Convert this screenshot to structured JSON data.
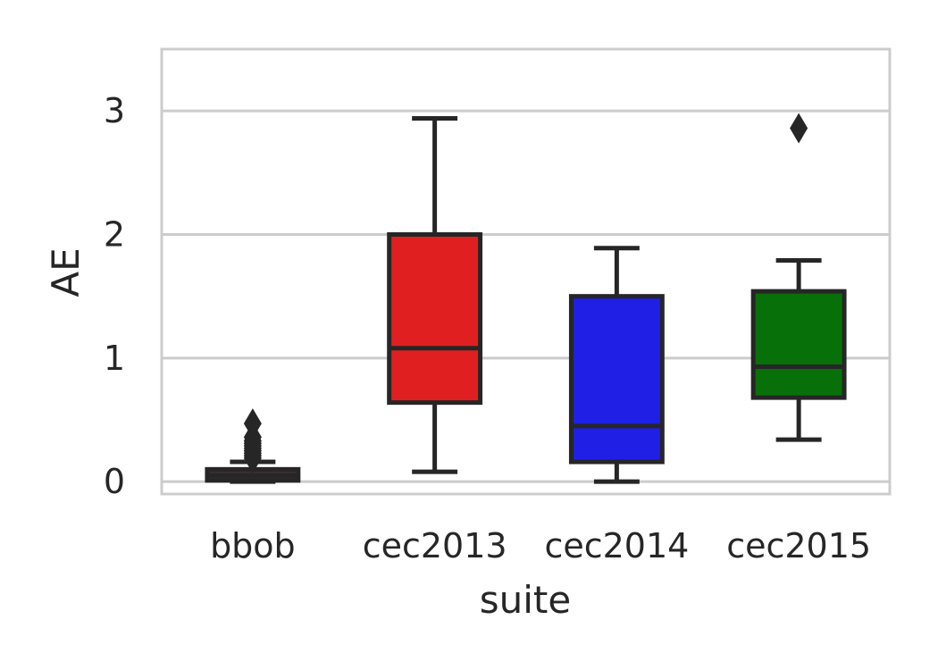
{
  "chart_data": {
    "type": "box",
    "xlabel": "suite",
    "ylabel": "AE",
    "ylim": [
      -0.1,
      3.5
    ],
    "yticks": [
      0,
      1,
      2,
      3
    ],
    "grid": "horizontal",
    "categories": [
      "bbob",
      "cec2013",
      "cec2014",
      "cec2015"
    ],
    "colors": [
      "#3a2f36",
      "#e02020",
      "#1f1fe6",
      "#087008"
    ],
    "boxes": [
      {
        "label": "bbob",
        "whisker_low": 0.0,
        "q1": 0.01,
        "median": 0.05,
        "q3": 0.1,
        "whisker_high": 0.16,
        "outliers": [
          0.19,
          0.21,
          0.23,
          0.25,
          0.27,
          0.29,
          0.31,
          0.33,
          0.36,
          0.47
        ]
      },
      {
        "label": "cec2013",
        "whisker_low": 0.08,
        "q1": 0.64,
        "median": 1.08,
        "q3": 2.0,
        "whisker_high": 2.94,
        "outliers": []
      },
      {
        "label": "cec2014",
        "whisker_low": 0.0,
        "q1": 0.16,
        "median": 0.45,
        "q3": 1.5,
        "whisker_high": 1.89,
        "outliers": []
      },
      {
        "label": "cec2015",
        "whisker_low": 0.34,
        "q1": 0.68,
        "median": 0.93,
        "q3": 1.54,
        "whisker_high": 1.79,
        "outliers": [
          2.86
        ]
      }
    ]
  }
}
